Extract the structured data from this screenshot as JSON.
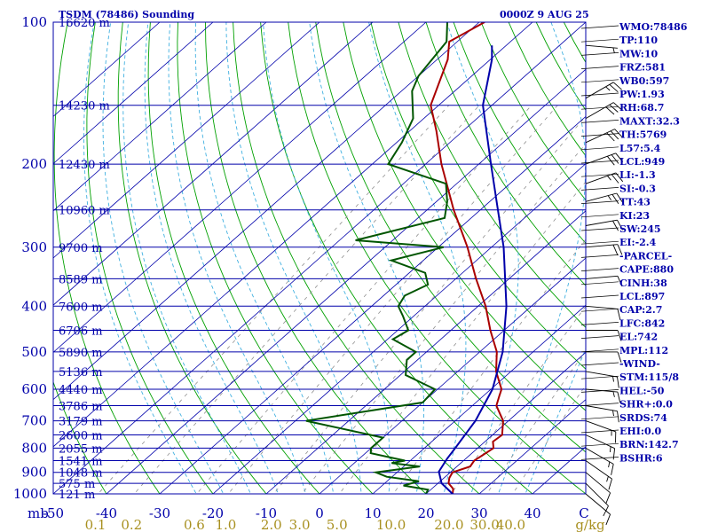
{
  "header": {
    "title": "TSDM (78486) Sounding",
    "datetime": "0000Z  9 AUG 25"
  },
  "colors": {
    "frame": "#0000aa",
    "isobar": "#0000aa",
    "isotherm": "#0000aa",
    "dry_adiabat": "#00a000",
    "moist_adiabat": "#40b0e0",
    "mixing_ratio": "#909090",
    "temperature": "#aa0000",
    "dewpoint": "#005500",
    "parcel": "#0000aa",
    "wind_barb": "#000000",
    "mixing_label": "#a89020"
  },
  "chart_data": {
    "type": "skew-t",
    "title": "TSDM (78486) Sounding",
    "pressure_unit_label": "mb",
    "mixing_ratio_unit": "g/kg",
    "pressure_range": [
      1000,
      100
    ],
    "temperature_range": [
      -50,
      50
    ],
    "pressure_ticks": [
      "100",
      "200",
      "300",
      "400",
      "500",
      "600",
      "700",
      "800",
      "900",
      "1000"
    ],
    "temperature_ticks": [
      "-50",
      "-40",
      "-30",
      "-20",
      "-10",
      "0",
      "10",
      "20",
      "30",
      "40",
      "C"
    ],
    "mixing_ratio_ticks": [
      "0.1",
      "0.2",
      "0.6",
      "1.0",
      "2.0",
      "3.0",
      "5.0",
      "10.0",
      "20.0",
      "30.0",
      "40.0",
      "g/kg"
    ],
    "height_levels": [
      {
        "p": 100,
        "label": "16620 m"
      },
      {
        "p": 150,
        "label": "14230 m"
      },
      {
        "p": 200,
        "label": "12430 m"
      },
      {
        "p": 250,
        "label": "10960 m"
      },
      {
        "p": 300,
        "label": "9700 m"
      },
      {
        "p": 350,
        "label": "8589 m"
      },
      {
        "p": 400,
        "label": "7600 m"
      },
      {
        "p": 450,
        "label": "6706 m"
      },
      {
        "p": 500,
        "label": "5890 m"
      },
      {
        "p": 550,
        "label": "5136 m"
      },
      {
        "p": 600,
        "label": "4440 m"
      },
      {
        "p": 650,
        "label": "3786 m"
      },
      {
        "p": 700,
        "label": "3179 m"
      },
      {
        "p": 750,
        "label": "2600 m"
      },
      {
        "p": 800,
        "label": "2055 m"
      },
      {
        "p": 850,
        "label": "1541 m"
      },
      {
        "p": 900,
        "label": "1048 m"
      },
      {
        "p": 950,
        "label": "575 m"
      },
      {
        "p": 1000,
        "label": "121 m"
      }
    ],
    "series": [
      {
        "name": "",
        "role": "temperature",
        "points": [
          [
            1000,
            25.0
          ],
          [
            975,
            24.0
          ],
          [
            950,
            22.0
          ],
          [
            925,
            21.0
          ],
          [
            900,
            20.4
          ],
          [
            875,
            22.5
          ],
          [
            850,
            22.0
          ],
          [
            800,
            23.0
          ],
          [
            775,
            21.5
          ],
          [
            750,
            21.8
          ],
          [
            700,
            19.0
          ],
          [
            650,
            14.5
          ],
          [
            620,
            13.0
          ],
          [
            600,
            12.0
          ],
          [
            550,
            7.2
          ],
          [
            500,
            3.2
          ],
          [
            450,
            -2.6
          ],
          [
            400,
            -8.6
          ],
          [
            350,
            -16.2
          ],
          [
            300,
            -24.5
          ],
          [
            250,
            -35.0
          ],
          [
            200,
            -47.0
          ],
          [
            170,
            -55.0
          ],
          [
            150,
            -61.5
          ],
          [
            120,
            -68.0
          ],
          [
            110,
            -71.5
          ],
          [
            100,
            -69.0
          ]
        ]
      },
      {
        "name": "",
        "role": "dewpoint",
        "points": [
          [
            1000,
            20.0
          ],
          [
            980,
            19.5
          ],
          [
            960,
            14.0
          ],
          [
            940,
            16.0
          ],
          [
            920,
            9.0
          ],
          [
            900,
            6.0
          ],
          [
            875,
            13.0
          ],
          [
            860,
            7.0
          ],
          [
            850,
            9.0
          ],
          [
            820,
            1.0
          ],
          [
            800,
            0.0
          ],
          [
            760,
            0.0
          ],
          [
            700,
            -18.0
          ],
          [
            640,
            0.0
          ],
          [
            600,
            -0.5
          ],
          [
            560,
            -9.0
          ],
          [
            520,
            -12.0
          ],
          [
            500,
            -12.0
          ],
          [
            470,
            -19.0
          ],
          [
            450,
            -18.0
          ],
          [
            420,
            -22.0
          ],
          [
            400,
            -25.0
          ],
          [
            380,
            -26.0
          ],
          [
            360,
            -24.0
          ],
          [
            340,
            -27.0
          ],
          [
            320,
            -36.0
          ],
          [
            300,
            -29.0
          ],
          [
            290,
            -47.0
          ],
          [
            260,
            -35.0
          ],
          [
            240,
            -38.0
          ],
          [
            220,
            -42.0
          ],
          [
            200,
            -57.0
          ],
          [
            180,
            -59.0
          ],
          [
            160,
            -62.0
          ],
          [
            140,
            -68.0
          ],
          [
            130,
            -70.0
          ],
          [
            110,
            -72.0
          ],
          [
            100,
            -76.0
          ]
        ]
      },
      {
        "name": "",
        "role": "parcel",
        "points": [
          [
            1000,
            25.0
          ],
          [
            950,
            20.7
          ],
          [
            897,
            17.7
          ],
          [
            842,
            16.5
          ],
          [
            800,
            15.8
          ],
          [
            700,
            13.8
          ],
          [
            600,
            10.3
          ],
          [
            500,
            4.3
          ],
          [
            400,
            -4.7
          ],
          [
            300,
            -17.7
          ],
          [
            250,
            -26.7
          ],
          [
            200,
            -37.7
          ],
          [
            150,
            -51.7
          ],
          [
            120,
            -59.7
          ],
          [
            112,
            -62.7
          ]
        ]
      }
    ],
    "wind_barbs": [
      {
        "p": 112,
        "dir": 95,
        "kt": 5
      },
      {
        "p": 145,
        "dir": 60,
        "kt": 25
      },
      {
        "p": 160,
        "dir": 60,
        "kt": 30
      },
      {
        "p": 180,
        "dir": 65,
        "kt": 30
      },
      {
        "p": 200,
        "dir": 70,
        "kt": 30
      },
      {
        "p": 220,
        "dir": 70,
        "kt": 25
      },
      {
        "p": 240,
        "dir": 75,
        "kt": 25
      },
      {
        "p": 270,
        "dir": 80,
        "kt": 20
      },
      {
        "p": 300,
        "dir": 85,
        "kt": 20
      },
      {
        "p": 350,
        "dir": 85,
        "kt": 10
      },
      {
        "p": 400,
        "dir": 95,
        "kt": 10
      },
      {
        "p": 450,
        "dir": 90,
        "kt": 10
      },
      {
        "p": 500,
        "dir": 90,
        "kt": 10
      },
      {
        "p": 550,
        "dir": 100,
        "kt": 15
      },
      {
        "p": 600,
        "dir": 95,
        "kt": 15
      },
      {
        "p": 650,
        "dir": 100,
        "kt": 15
      },
      {
        "p": 700,
        "dir": 110,
        "kt": 15
      },
      {
        "p": 750,
        "dir": 115,
        "kt": 15
      },
      {
        "p": 800,
        "dir": 120,
        "kt": 15
      },
      {
        "p": 850,
        "dir": 125,
        "kt": 15
      },
      {
        "p": 900,
        "dir": 130,
        "kt": 10
      },
      {
        "p": 950,
        "dir": 135,
        "kt": 10
      },
      {
        "p": 1000,
        "dir": 130,
        "kt": 10
      }
    ]
  },
  "indices": [
    "WMO:78486",
    "TP:110",
    "MW:10",
    "FRZ:581",
    "WB0:597",
    "PW:1.93",
    "RH:68.7",
    "MAXT:32.3",
    "TH:5769",
    "L57:5.4",
    "LCL:949",
    "LI:-1.3",
    "SI:-0.3",
    "TT:43",
    "KI:23",
    "SW:245",
    "EI:-2.4",
    "-PARCEL-",
    "CAPE:880",
    "CINH:38",
    "LCL:897",
    "CAP:2.7",
    "LFC:842",
    "EL:742",
    "MPL:112",
    "-WIND-",
    "STM:115/8",
    "HEL:-50",
    "SHR+:0.0",
    "SRDS:74",
    "EHI:0.0",
    "BRN:142.7",
    "BSHR:6"
  ]
}
